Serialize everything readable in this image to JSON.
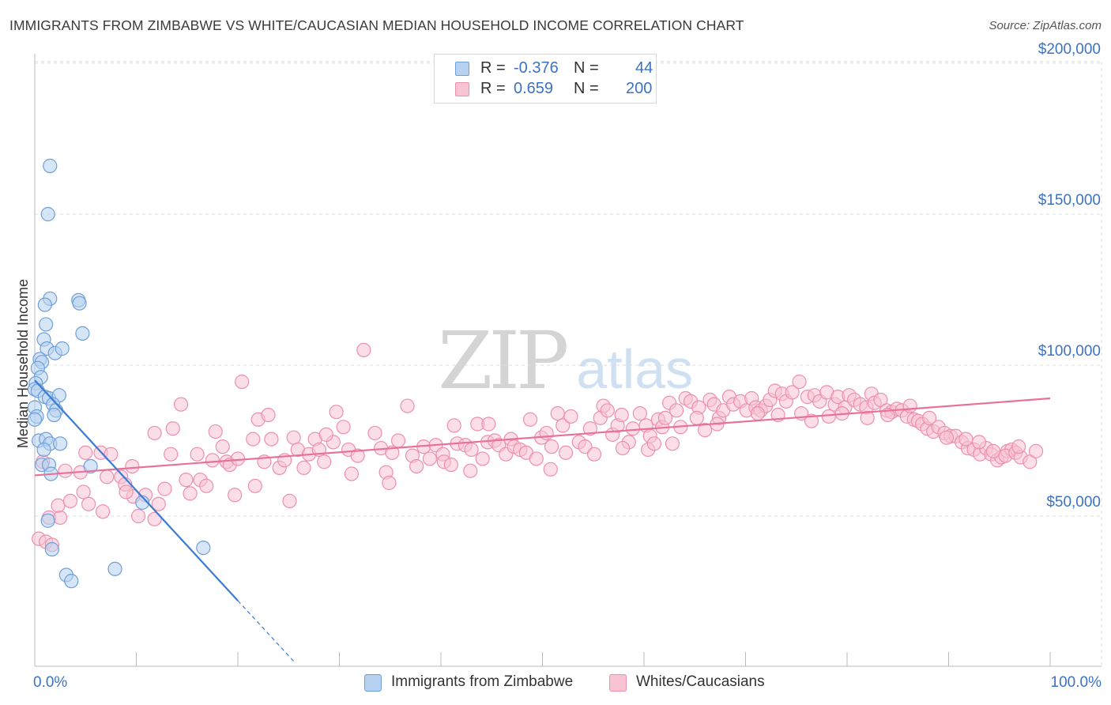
{
  "title": "IMMIGRANTS FROM ZIMBABWE VS WHITE/CAUCASIAN MEDIAN HOUSEHOLD INCOME CORRELATION CHART",
  "source": "Source: ZipAtlas.com",
  "watermark": {
    "zip": "ZIP",
    "atlas": "atlas"
  },
  "legend": {
    "r_label": "R =",
    "n_label": "N =",
    "series": [
      {
        "r": "-0.376",
        "n": "44"
      },
      {
        "r": "0.659",
        "n": "200"
      }
    ]
  },
  "colors": {
    "blue_fill": "#b7d1f1",
    "blue_stroke": "#6e9fd9",
    "blue_line": "#3a7bd5",
    "pink_fill": "#f8c3d3",
    "pink_stroke": "#ec90ae",
    "pink_line": "#e8719b",
    "tick_color": "#3b73c4",
    "grid": "#dcdcdc"
  },
  "chart_data": {
    "type": "scatter",
    "title": "IMMIGRANTS FROM ZIMBABWE VS WHITE/CAUCASIAN MEDIAN HOUSEHOLD INCOME CORRELATION CHART",
    "xlabel": "",
    "ylabel": "Median Household Income",
    "xlim": [
      0,
      100
    ],
    "ylim": [
      0,
      210000
    ],
    "x_tick_labels": [
      "0.0%",
      "100.0%"
    ],
    "y_ticks": [
      {
        "value": 50000,
        "label": "$50,000"
      },
      {
        "value": 100000,
        "label": "$100,000"
      },
      {
        "value": 150000,
        "label": "$150,000"
      },
      {
        "value": 200000,
        "label": "$200,000"
      }
    ],
    "series": [
      {
        "name": "Immigrants from Zimbabwe",
        "r": -0.376,
        "n": 44,
        "trend": {
          "x0": 0,
          "y0": 95000,
          "x1": 20,
          "y1": 22000,
          "dash_to_x": 25.5
        },
        "points": [
          [
            1.5,
            166000
          ],
          [
            1.3,
            150000
          ],
          [
            1.5,
            122000
          ],
          [
            1.0,
            120000
          ],
          [
            4.3,
            121500
          ],
          [
            4.4,
            120500
          ],
          [
            1.1,
            113500
          ],
          [
            0.9,
            108500
          ],
          [
            4.7,
            110500
          ],
          [
            1.2,
            105500
          ],
          [
            2.0,
            104000
          ],
          [
            2.7,
            105500
          ],
          [
            0.5,
            102000
          ],
          [
            0.7,
            101000
          ],
          [
            0.3,
            99000
          ],
          [
            0.6,
            96000
          ],
          [
            0.1,
            94000
          ],
          [
            0.0,
            92000
          ],
          [
            0.3,
            91500
          ],
          [
            1.0,
            89500
          ],
          [
            1.4,
            89000
          ],
          [
            2.4,
            90000
          ],
          [
            1.8,
            87000
          ],
          [
            0.0,
            86000
          ],
          [
            2.1,
            85000
          ],
          [
            0.2,
            83000
          ],
          [
            1.9,
            83500
          ],
          [
            0.0,
            82000
          ],
          [
            0.4,
            75000
          ],
          [
            1.1,
            75500
          ],
          [
            1.5,
            74000
          ],
          [
            2.5,
            74000
          ],
          [
            0.9,
            72000
          ],
          [
            0.7,
            67000
          ],
          [
            1.4,
            67000
          ],
          [
            5.5,
            66500
          ],
          [
            1.6,
            64000
          ],
          [
            10.6,
            54500
          ],
          [
            1.3,
            48500
          ],
          [
            1.7,
            39000
          ],
          [
            16.6,
            39500
          ],
          [
            3.1,
            30500
          ],
          [
            7.9,
            32500
          ],
          [
            3.6,
            28500
          ]
        ]
      },
      {
        "name": "Whites/Caucasians",
        "r": 0.659,
        "n": 200,
        "trend": {
          "x0": 0,
          "y0": 63500,
          "x1": 100,
          "y1": 89000
        },
        "points": [
          [
            0.4,
            42500
          ],
          [
            1.1,
            41500
          ],
          [
            1.7,
            40500
          ],
          [
            1.4,
            49500
          ],
          [
            2.5,
            49500
          ],
          [
            2.3,
            53500
          ],
          [
            3.5,
            55000
          ],
          [
            4.8,
            58000
          ],
          [
            5.3,
            54000
          ],
          [
            6.7,
            51500
          ],
          [
            4.5,
            64500
          ],
          [
            5.0,
            71000
          ],
          [
            6.5,
            71000
          ],
          [
            7.1,
            63000
          ],
          [
            8.5,
            63000
          ],
          [
            7.5,
            70500
          ],
          [
            9.6,
            66500
          ],
          [
            8.9,
            60500
          ],
          [
            9.7,
            56500
          ],
          [
            10.2,
            50000
          ],
          [
            11.8,
            49000
          ],
          [
            10.9,
            57000
          ],
          [
            12.8,
            59000
          ],
          [
            11.8,
            77500
          ],
          [
            13.6,
            79000
          ],
          [
            14.4,
            87000
          ],
          [
            13.4,
            70500
          ],
          [
            14.9,
            62000
          ],
          [
            15.3,
            57500
          ],
          [
            16.0,
            70500
          ],
          [
            16.3,
            62000
          ],
          [
            17.5,
            68500
          ],
          [
            16.9,
            60000
          ],
          [
            17.8,
            78000
          ],
          [
            18.9,
            68000
          ],
          [
            19.2,
            67000
          ],
          [
            20.0,
            69000
          ],
          [
            19.7,
            57000
          ],
          [
            20.4,
            94500
          ],
          [
            21.5,
            75500
          ],
          [
            22.0,
            82000
          ],
          [
            21.7,
            60000
          ],
          [
            23.0,
            83500
          ],
          [
            23.3,
            75500
          ],
          [
            24.1,
            66000
          ],
          [
            24.6,
            68500
          ],
          [
            25.1,
            55000
          ],
          [
            25.5,
            76000
          ],
          [
            25.9,
            72000
          ],
          [
            26.5,
            66000
          ],
          [
            27.0,
            70500
          ],
          [
            27.6,
            75500
          ],
          [
            28.0,
            72000
          ],
          [
            28.5,
            68000
          ],
          [
            29.4,
            74500
          ],
          [
            29.7,
            84500
          ],
          [
            30.4,
            79500
          ],
          [
            30.9,
            72000
          ],
          [
            31.2,
            64000
          ],
          [
            31.8,
            70000
          ],
          [
            32.4,
            105000
          ],
          [
            33.5,
            77500
          ],
          [
            34.1,
            72500
          ],
          [
            34.6,
            64500
          ],
          [
            35.2,
            71000
          ],
          [
            35.8,
            75000
          ],
          [
            36.7,
            86500
          ],
          [
            37.2,
            70000
          ],
          [
            37.6,
            66500
          ],
          [
            38.3,
            73000
          ],
          [
            38.9,
            69000
          ],
          [
            39.5,
            73500
          ],
          [
            40.2,
            70500
          ],
          [
            40.3,
            68000
          ],
          [
            41.0,
            67000
          ],
          [
            41.6,
            74000
          ],
          [
            41.3,
            80000
          ],
          [
            42.4,
            73500
          ],
          [
            43.0,
            72000
          ],
          [
            43.6,
            80500
          ],
          [
            44.1,
            69000
          ],
          [
            44.6,
            74500
          ],
          [
            44.7,
            80500
          ],
          [
            45.3,
            75000
          ],
          [
            45.7,
            73500
          ],
          [
            46.4,
            70500
          ],
          [
            46.9,
            75500
          ],
          [
            47.2,
            73000
          ],
          [
            47.8,
            72000
          ],
          [
            48.4,
            71000
          ],
          [
            48.8,
            82000
          ],
          [
            49.4,
            69000
          ],
          [
            49.9,
            76000
          ],
          [
            50.4,
            77500
          ],
          [
            50.9,
            73000
          ],
          [
            51.5,
            84000
          ],
          [
            52.0,
            80000
          ],
          [
            52.3,
            71000
          ],
          [
            52.8,
            83000
          ],
          [
            53.6,
            74500
          ],
          [
            54.2,
            73000
          ],
          [
            54.7,
            79000
          ],
          [
            55.1,
            70500
          ],
          [
            56.0,
            86500
          ],
          [
            55.7,
            82500
          ],
          [
            56.4,
            85000
          ],
          [
            56.9,
            77000
          ],
          [
            57.4,
            80000
          ],
          [
            57.8,
            83500
          ],
          [
            58.5,
            74500
          ],
          [
            58.9,
            79000
          ],
          [
            59.6,
            84000
          ],
          [
            60.2,
            80000
          ],
          [
            60.6,
            76500
          ],
          [
            60.4,
            72000
          ],
          [
            61.4,
            82000
          ],
          [
            61.8,
            79500
          ],
          [
            62.1,
            82500
          ],
          [
            62.5,
            87500
          ],
          [
            63.2,
            85000
          ],
          [
            63.6,
            79500
          ],
          [
            64.1,
            89000
          ],
          [
            64.6,
            88000
          ],
          [
            65.4,
            86000
          ],
          [
            65.2,
            82500
          ],
          [
            66.0,
            78500
          ],
          [
            66.5,
            88500
          ],
          [
            66.9,
            87000
          ],
          [
            67.4,
            82500
          ],
          [
            67.8,
            85000
          ],
          [
            68.4,
            89500
          ],
          [
            68.8,
            87000
          ],
          [
            69.5,
            88000
          ],
          [
            70.1,
            85000
          ],
          [
            70.6,
            89000
          ],
          [
            71.0,
            86000
          ],
          [
            71.5,
            85000
          ],
          [
            72.0,
            86500
          ],
          [
            72.4,
            88500
          ],
          [
            72.9,
            91500
          ],
          [
            73.6,
            90500
          ],
          [
            74.0,
            88000
          ],
          [
            74.6,
            91000
          ],
          [
            75.3,
            94500
          ],
          [
            75.5,
            84000
          ],
          [
            76.1,
            89500
          ],
          [
            76.8,
            90000
          ],
          [
            77.3,
            88000
          ],
          [
            78.0,
            91000
          ],
          [
            78.2,
            83000
          ],
          [
            78.8,
            87000
          ],
          [
            79.1,
            89500
          ],
          [
            79.8,
            86000
          ],
          [
            80.2,
            90000
          ],
          [
            80.7,
            88500
          ],
          [
            81.3,
            87000
          ],
          [
            81.9,
            86000
          ],
          [
            82.4,
            90500
          ],
          [
            82.7,
            87500
          ],
          [
            83.3,
            88500
          ],
          [
            83.9,
            85000
          ],
          [
            84.4,
            84500
          ],
          [
            84.9,
            85500
          ],
          [
            85.4,
            85000
          ],
          [
            85.9,
            83000
          ],
          [
            86.6,
            82000
          ],
          [
            87.0,
            81500
          ],
          [
            87.4,
            80500
          ],
          [
            87.9,
            79000
          ],
          [
            88.5,
            78000
          ],
          [
            89.0,
            79500
          ],
          [
            89.6,
            77500
          ],
          [
            90.2,
            76500
          ],
          [
            90.7,
            76500
          ],
          [
            91.3,
            74500
          ],
          [
            91.9,
            72500
          ],
          [
            92.5,
            72000
          ],
          [
            93.1,
            70500
          ],
          [
            93.7,
            72500
          ],
          [
            94.2,
            70500
          ],
          [
            94.8,
            68500
          ],
          [
            95.2,
            69500
          ],
          [
            95.8,
            71500
          ],
          [
            96.2,
            72000
          ],
          [
            0.8,
            68000
          ],
          [
            3.0,
            65000
          ],
          [
            9.0,
            58000
          ],
          [
            12.2,
            54000
          ],
          [
            18.5,
            73000
          ],
          [
            22.6,
            68000
          ],
          [
            28.7,
            77000
          ],
          [
            34.9,
            61000
          ],
          [
            42.9,
            65000
          ],
          [
            50.8,
            65500
          ],
          [
            57.9,
            72500
          ],
          [
            62.8,
            74000
          ],
          [
            67.2,
            80500
          ],
          [
            71.2,
            84000
          ],
          [
            73.2,
            83500
          ],
          [
            76.5,
            81500
          ],
          [
            79.5,
            84000
          ],
          [
            82.0,
            82500
          ],
          [
            84.0,
            83500
          ],
          [
            86.2,
            86500
          ],
          [
            88.1,
            82500
          ],
          [
            89.8,
            76000
          ],
          [
            91.7,
            75500
          ],
          [
            93.0,
            74500
          ],
          [
            94.4,
            71500
          ],
          [
            95.6,
            70000
          ],
          [
            96.6,
            71000
          ],
          [
            97.1,
            69500
          ],
          [
            98.0,
            68000
          ],
          [
            98.6,
            71500
          ],
          [
            96.9,
            73000
          ],
          [
            61.0,
            74000
          ]
        ]
      }
    ]
  },
  "bottom_legend": [
    "Immigrants from Zimbabwe",
    "Whites/Caucasians"
  ]
}
